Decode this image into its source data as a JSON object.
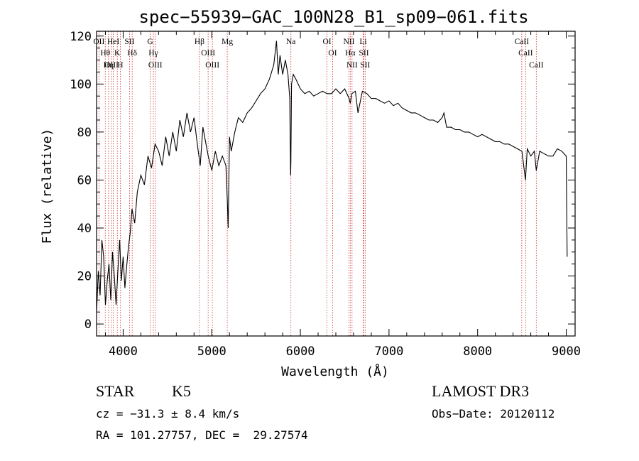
{
  "chart_data": {
    "type": "line",
    "title": "spec−55939−GAC_100N28_B1_sp09−061.fits",
    "xlabel": "Wavelength (Å)",
    "ylabel": "Flux (relative)",
    "xlim": [
      3700,
      9100
    ],
    "ylim": [
      -5,
      122
    ],
    "xticks": [
      4000,
      5000,
      6000,
      7000,
      8000,
      9000
    ],
    "xtick_labels": [
      "4000",
      "5000",
      "6000",
      "7000",
      "8000",
      "9000"
    ],
    "yticks": [
      0,
      20,
      40,
      60,
      80,
      100,
      120
    ],
    "ytick_labels": [
      "0",
      "20",
      "40",
      "60",
      "80",
      "100",
      "120"
    ],
    "grid": false,
    "series": [
      {
        "name": "flux",
        "x": [
          3700,
          3720,
          3740,
          3760,
          3780,
          3800,
          3820,
          3840,
          3860,
          3880,
          3900,
          3920,
          3940,
          3960,
          3980,
          4000,
          4020,
          4040,
          4060,
          4080,
          4100,
          4130,
          4160,
          4200,
          4240,
          4280,
          4320,
          4360,
          4400,
          4440,
          4480,
          4520,
          4560,
          4600,
          4640,
          4680,
          4720,
          4760,
          4800,
          4840,
          4870,
          4900,
          4930,
          4960,
          5000,
          5040,
          5080,
          5120,
          5160,
          5175,
          5185,
          5200,
          5220,
          5260,
          5300,
          5350,
          5400,
          5450,
          5500,
          5550,
          5600,
          5650,
          5700,
          5730,
          5750,
          5770,
          5800,
          5830,
          5860,
          5880,
          5890,
          5893,
          5900,
          5920,
          5950,
          6000,
          6050,
          6100,
          6150,
          6200,
          6250,
          6300,
          6350,
          6400,
          6450,
          6500,
          6550,
          6563,
          6580,
          6620,
          6650,
          6700,
          6750,
          6800,
          6850,
          6900,
          6950,
          7000,
          7050,
          7100,
          7150,
          7200,
          7250,
          7300,
          7350,
          7400,
          7450,
          7500,
          7550,
          7600,
          7620,
          7650,
          7700,
          7750,
          7800,
          7850,
          7900,
          7950,
          8000,
          8050,
          8100,
          8150,
          8200,
          8250,
          8300,
          8350,
          8400,
          8450,
          8500,
          8540,
          8560,
          8600,
          8640,
          8662,
          8700,
          8750,
          8800,
          8850,
          8900,
          8950,
          9000,
          9010
        ],
        "y": [
          5,
          22,
          12,
          35,
          28,
          8,
          18,
          25,
          10,
          30,
          20,
          8,
          22,
          35,
          18,
          28,
          15,
          24,
          32,
          38,
          48,
          42,
          55,
          62,
          58,
          70,
          65,
          75,
          72,
          66,
          78,
          70,
          80,
          72,
          85,
          78,
          88,
          80,
          86,
          74,
          66,
          82,
          76,
          70,
          64,
          72,
          66,
          70,
          66,
          52,
          40,
          78,
          72,
          80,
          86,
          84,
          88,
          90,
          93,
          96,
          98,
          102,
          108,
          118,
          104,
          112,
          104,
          110,
          104,
          94,
          62,
          68,
          100,
          104,
          102,
          98,
          96,
          97,
          95,
          96,
          97,
          96,
          96,
          98,
          96,
          98,
          94,
          92,
          96,
          97,
          88,
          97,
          96,
          94,
          94,
          93,
          92,
          93,
          91,
          92,
          90,
          89,
          88,
          88,
          87,
          86,
          85,
          85,
          84,
          86,
          88,
          82,
          82,
          81,
          81,
          80,
          80,
          79,
          78,
          79,
          78,
          77,
          76,
          76,
          75,
          75,
          74,
          73,
          72,
          60,
          73,
          70,
          72,
          64,
          72,
          71,
          70,
          70,
          73,
          72,
          70,
          28
        ]
      }
    ],
    "lines": [
      {
        "name": "Hθ",
        "x": 3798
      },
      {
        "name": "OII",
        "x": 3727
      },
      {
        "name": "OIII",
        "x": 3869
      },
      {
        "name": "K",
        "x": 3934
      },
      {
        "name": "H",
        "x": 3968
      },
      {
        "name": "HeI",
        "x": 3889
      },
      {
        "name": "Hη",
        "x": 3835
      },
      {
        "name": "Hδ",
        "x": 4102
      },
      {
        "name": "SII",
        "x": 4072
      },
      {
        "name": "OIII",
        "x": 4363
      },
      {
        "name": "Hγ",
        "x": 4341
      },
      {
        "name": "G",
        "x": 4305
      },
      {
        "name": "OIII",
        "x": 4959
      },
      {
        "name": "OIII",
        "x": 5007
      },
      {
        "name": "Hβ",
        "x": 4861
      },
      {
        "name": "Mg",
        "x": 5175
      },
      {
        "name": "Na",
        "x": 5893
      },
      {
        "name": "OI",
        "x": 6300
      },
      {
        "name": "OI",
        "x": 6364
      },
      {
        "name": "Hα",
        "x": 6563
      },
      {
        "name": "NII",
        "x": 6548
      },
      {
        "name": "NII",
        "x": 6583
      },
      {
        "name": "SII",
        "x": 6717
      },
      {
        "name": "SII",
        "x": 6731
      },
      {
        "name": "Li",
        "x": 6708
      },
      {
        "name": "CaII",
        "x": 8498
      },
      {
        "name": "CaII",
        "x": 8542
      },
      {
        "name": "CaII",
        "x": 8662
      }
    ]
  },
  "info": {
    "class_label": "STAR",
    "subclass": "K5",
    "survey": "LAMOST DR3",
    "cz": "cz = −31.3 ± 8.4 km/s",
    "obs_date": "Obs−Date: 20120112",
    "coords": "RA = 101.27757, DEC =  29.27574"
  },
  "colors": {
    "axis": "#000000",
    "spectrum": "#000000",
    "line_marker": "#cc3333"
  }
}
